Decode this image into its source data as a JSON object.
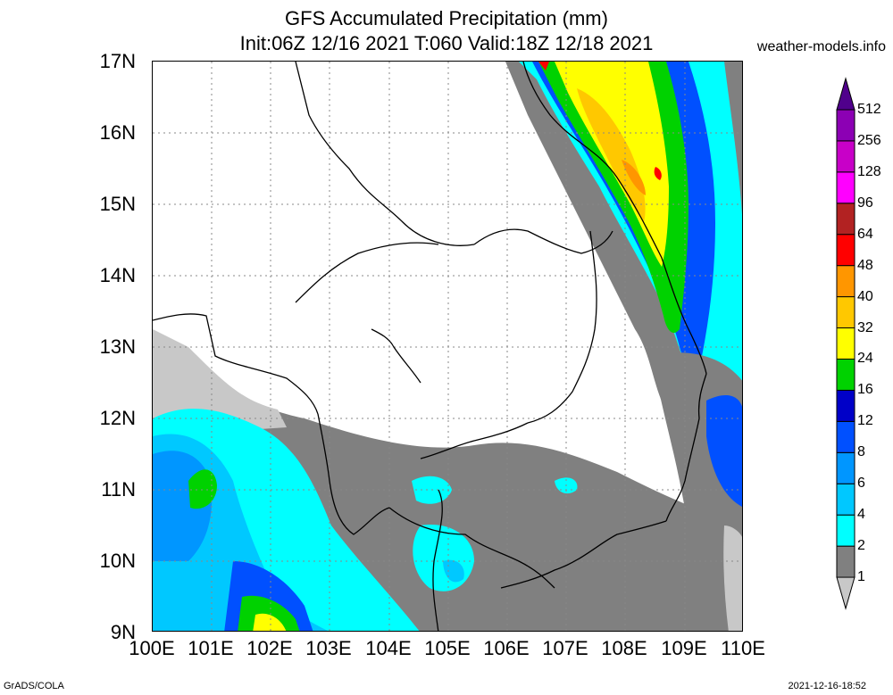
{
  "header": {
    "title_line1": "GFS Accumulated Precipitation (mm)",
    "title_line2": "Init:06Z 12/16 2021 T:060 Valid:18Z 12/18 2021",
    "site": "weather-models.info"
  },
  "map": {
    "lat_labels": [
      "17N",
      "16N",
      "15N",
      "14N",
      "13N",
      "12N",
      "11N",
      "10N",
      "9N"
    ],
    "lon_labels": [
      "100E",
      "101E",
      "102E",
      "103E",
      "104E",
      "105E",
      "106E",
      "107E",
      "108E",
      "109E",
      "110E"
    ]
  },
  "legend": {
    "labels": [
      "1",
      "2",
      "4",
      "6",
      "8",
      "12",
      "16",
      "24",
      "32",
      "40",
      "48",
      "64",
      "96",
      "128",
      "256",
      "512"
    ],
    "colors": [
      "#c8c8c8",
      "#808080",
      "#00ffff",
      "#00c8ff",
      "#0096ff",
      "#0050ff",
      "#0000c8",
      "#00d200",
      "#ffff00",
      "#ffc800",
      "#ff9600",
      "#ff0000",
      "#b22222",
      "#ff00ff",
      "#c800c8",
      "#8c00b4",
      "#50008c"
    ]
  },
  "footer": {
    "left": "GrADS/COLA",
    "right": "2021-12-16-18:52"
  }
}
